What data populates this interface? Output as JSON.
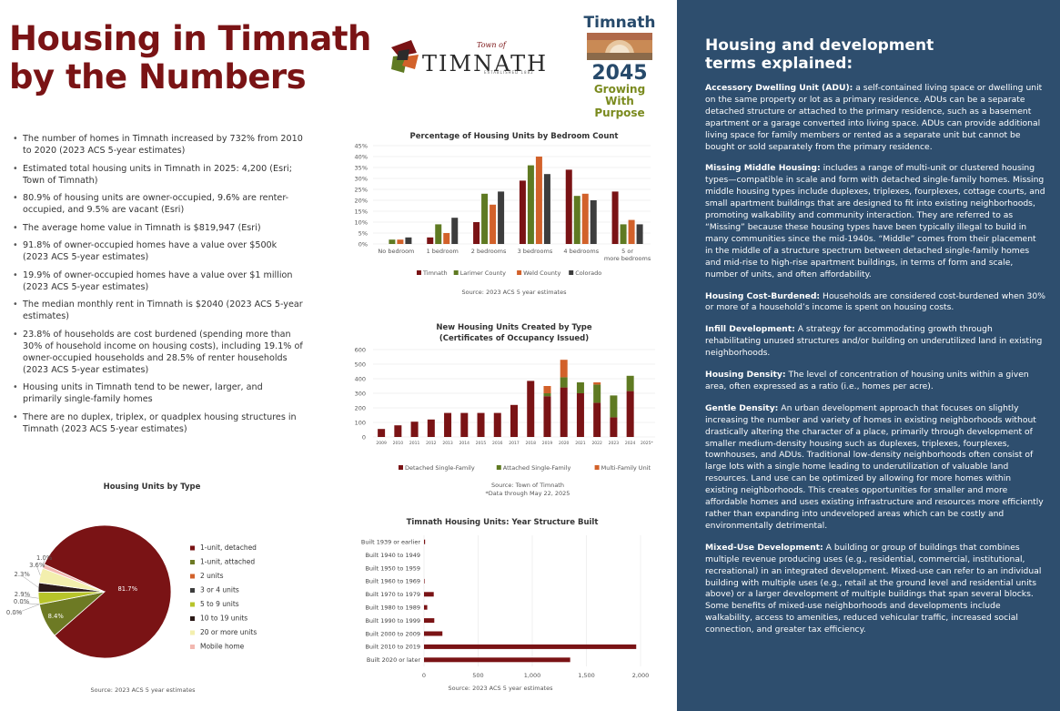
{
  "page": {
    "title_line1": "Housing in Timnath",
    "title_line2": "by the Numbers"
  },
  "logos": {
    "town_wordmark": "TIMNATH",
    "town_prefix": "Town of",
    "town_established": "ESTABLISHED 1882",
    "plan_top": "Timnath",
    "plan_year": "2045",
    "plan_tag1": "Growing",
    "plan_tag2": "With Purpose"
  },
  "facts": [
    "The number of homes in Timnath increased by 732% from 2010 to 2020  (2023 ACS 5-year estimates)",
    "Estimated total housing units in Timnath in 2025: 4,200 (Esri; Town of Timnath)",
    "80.9% of housing units are owner-occupied, 9.6% are renter-occupied, and 9.5% are vacant (Esri)",
    "The average home value in Timnath is $819,947 (Esri)",
    "91.8% of owner-occupied homes have a value over $500k (2023 ACS 5-year estimates)",
    "19.9% of owner-occupied homes have a value over $1 million (2023 ACS 5-year estimates)",
    "The median monthly rent in Timnath is $2040 (2023 ACS 5-year estimates)",
    "23.8% of households are cost burdened (spending more than 30% of household income on housing costs), including 19.1% of owner-occupied households and 28.5% of renter households (2023 ACS 5-year estimates)",
    "Housing units in Timnath tend to be newer, larger, and primarily single-family homes",
    "There are no duplex, triplex, or quadplex housing structures in Timnath (2023 ACS 5-year estimates)"
  ],
  "terms": {
    "heading": "Housing and development terms explained:",
    "items": [
      {
        "term": "Accessory Dwelling Unit (ADU):",
        "text": " a self-contained living space or dwelling unit on the same property or lot as a primary residence. ADUs can be a separate detached structure or attached to the primary residence, such as a basement apartment or a garage converted into living space. ADUs can provide additional living space for family members or rented as a separate unit but cannot be bought or sold separately from the primary residence."
      },
      {
        "term": "Missing Middle Housing:",
        "text": " includes a range of multi-unit or clustered housing types—compatible in scale and form with detached single-family homes. Missing middle housing types include duplexes, triplexes, fourplexes, cottage courts, and small apartment buildings that are designed to fit into existing neighborhoods, promoting walkability and community interaction. They are referred to as “Missing” because these housing types have been typically illegal to build in many communities since the mid-1940s. “Middle” comes from their placement in the middle of a structure spectrum between detached single-family homes and mid-rise to high-rise apartment buildings, in terms of form and scale, number of units, and often affordability."
      },
      {
        "term": "Housing Cost-Burdened:",
        "text": " Households are considered cost-burdened when 30% or more of a household’s income is spent on housing costs."
      },
      {
        "term": "Infill Development:",
        "text": " A strategy for accommodating growth through rehabilitating unused structures and/or building on underutilized land in existing neighborhoods."
      },
      {
        "term": "Housing Density:",
        "text": " The level of concentration of housing units within a given area, often expressed as a ratio (i.e., homes per acre)."
      },
      {
        "term": "Gentle Density:",
        "text": " An urban development approach that focuses on slightly increasing the number and variety of homes in existing neighborhoods without drastically altering the character of a place, primarily through development of smaller medium-density housing such as duplexes, triplexes, fourplexes, townhouses, and ADUs. Traditional low-density neighborhoods often consist of large lots with a single home leading to underutilization of valuable land resources. Land use can be optimized by allowing for more homes within existing neighborhoods. This creates opportunities for smaller and more affordable homes and uses existing infrastructure and resources more efficiently rather than expanding into undeveloped areas which can be costly and environmentally detrimental."
      },
      {
        "term": "Mixed-Use Development:",
        "text": " A building or group of buildings that combines multiple revenue producing uses (e.g., residential, commercial, institutional, recreational) in an integrated development. Mixed-use can refer to an individual building with multiple uses (e.g., retail at the ground level and residential units above) or a larger development of multiple buildings that span several blocks. Some benefits of mixed-use neighborhoods and developments include walkability, access to amenities, reduced vehicular traffic, increased social connection, and greater tax efficiency."
      }
    ]
  },
  "colors": {
    "maroon": "#7a1315",
    "olive": "#5f7a22",
    "orange": "#d2612a",
    "gray": "#3d3d3d",
    "navy": "#2e4e6e"
  },
  "chart_data": [
    {
      "id": "bedrooms",
      "type": "bar",
      "title": "Percentage of Housing Units by Bedroom Count",
      "source": "Source: 2023 ACS 5 year estimates",
      "categories": [
        "No bedroom",
        "1 bedroom",
        "2 bedrooms",
        "3 bedrooms",
        "4 bedrooms",
        "5 or more bedrooms"
      ],
      "series": [
        {
          "name": "Timnath",
          "color": "#7a1315",
          "values": [
            0,
            3,
            10,
            29,
            34,
            24
          ]
        },
        {
          "name": "Larimer County",
          "color": "#5f7a22",
          "values": [
            2,
            9,
            23,
            36,
            22,
            9
          ]
        },
        {
          "name": "Weld County",
          "color": "#d2612a",
          "values": [
            2,
            5,
            18,
            40,
            23,
            11
          ]
        },
        {
          "name": "Colorado",
          "color": "#3d3d3d",
          "values": [
            3,
            12,
            24,
            32,
            20,
            9
          ]
        }
      ],
      "yticks": [
        "0%",
        "5%",
        "10%",
        "15%",
        "20%",
        "25%",
        "30%",
        "35%",
        "40%",
        "45%"
      ],
      "ylim": [
        0,
        45
      ]
    },
    {
      "id": "newunits",
      "type": "bar",
      "stacked": true,
      "title_line1": "New Housing Units Created by Type",
      "title_line2": "(Certificates of Occupancy Issued)",
      "source_line1": "Source: Town of Timnath",
      "source_line2": "*Data through May 22, 2025",
      "categories": [
        "2009",
        "2010",
        "2011",
        "2012",
        "2013",
        "2014",
        "2015",
        "2016",
        "2017",
        "2018",
        "2019",
        "2020",
        "2021",
        "2022",
        "2023",
        "2024",
        "2025*"
      ],
      "series": [
        {
          "name": "Detached Single-Family",
          "color": "#7a1315",
          "values": [
            55,
            80,
            105,
            120,
            165,
            165,
            165,
            165,
            220,
            385,
            280,
            340,
            300,
            235,
            135,
            315,
            0
          ]
        },
        {
          "name": "Attached Single-Family",
          "color": "#5f7a22",
          "values": [
            0,
            0,
            0,
            0,
            0,
            0,
            0,
            0,
            0,
            0,
            20,
            70,
            75,
            125,
            150,
            105,
            0
          ]
        },
        {
          "name": "Multi-Family Unit",
          "color": "#d2612a",
          "values": [
            0,
            0,
            0,
            0,
            0,
            0,
            0,
            0,
            0,
            0,
            50,
            120,
            0,
            15,
            0,
            0,
            0
          ]
        }
      ],
      "yticks": [
        "0",
        "100",
        "200",
        "300",
        "400",
        "500",
        "600"
      ],
      "ylim": [
        0,
        600
      ]
    },
    {
      "id": "bytype",
      "type": "pie",
      "title": "Housing Units by Type",
      "source": "Source: 2023 ACS 5 year estimates",
      "slices": [
        {
          "label": "1-unit, detached",
          "value": 81.7,
          "display": "81.7%",
          "color": "#7a1315"
        },
        {
          "label": "1-unit, attached",
          "value": 8.4,
          "display": "8.4%",
          "color": "#6d7a24"
        },
        {
          "label": "2 units",
          "value": 0.0,
          "display": "0.0%",
          "color": "#d2612a"
        },
        {
          "label": "3 or 4 units",
          "value": 0.0,
          "display": "0.0%",
          "color": "#3d3d3d"
        },
        {
          "label": "5 to 9 units",
          "value": 2.9,
          "display": "2.9%",
          "color": "#b7c42a"
        },
        {
          "label": "10 to 19 units",
          "value": 2.3,
          "display": "2.3%",
          "color": "#2b1a18"
        },
        {
          "label": "20 or more units",
          "value": 3.6,
          "display": "3.6%",
          "color": "#f3efae"
        },
        {
          "label": "Mobile home",
          "value": 1.0,
          "display": "1.0%",
          "color": "#f2b8b0"
        }
      ]
    },
    {
      "id": "yearbuilt",
      "type": "bar",
      "orientation": "horizontal",
      "title": "Timnath Housing Units: Year Structure Built",
      "source": "Source: 2023 ACS 5 year estimates",
      "categories": [
        "Built 1939 or earlier",
        "Built 1940 to 1949",
        "Built 1950 to 1959",
        "Built 1960 to 1969",
        "Built 1970 to 1979",
        "Built 1980 to 1989",
        "Built 1990 to 1999",
        "Built 2000 to 2009",
        "Built 2010 to 2019",
        "Built 2020 or later"
      ],
      "values": [
        10,
        0,
        0,
        5,
        90,
        30,
        95,
        170,
        1960,
        1350
      ],
      "xticks": [
        "0",
        "500",
        "1,000",
        "1,500",
        "2,000"
      ],
      "xlim": [
        0,
        2000
      ],
      "color": "#7a1315"
    }
  ]
}
